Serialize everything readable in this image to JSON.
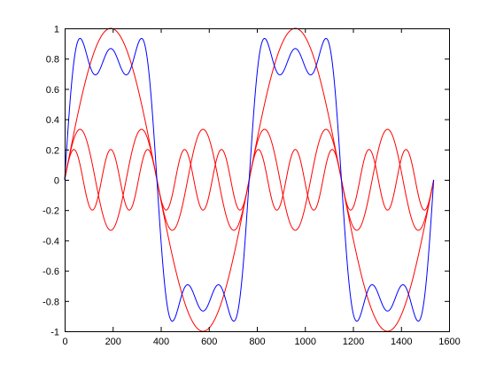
{
  "chart_data": {
    "type": "line",
    "title": "",
    "xlabel": "",
    "ylabel": "",
    "xlim": [
      0,
      1600
    ],
    "ylim": [
      -1,
      1
    ],
    "grid": false,
    "xticks": [
      0,
      200,
      400,
      600,
      800,
      1000,
      1200,
      1400,
      1600
    ],
    "xtick_labels": [
      "0",
      "200",
      "400",
      "600",
      "800",
      "1000",
      "1200",
      "1400",
      "1600"
    ],
    "yticks": [
      1,
      0.8,
      0.6,
      0.4,
      0.2,
      0,
      -0.2,
      -0.4,
      -0.6,
      -0.8,
      -1
    ],
    "ytick_labels": [
      "1",
      "0.8",
      "0.6",
      "0.4",
      "0.2",
      "0",
      "-0.2",
      "-0.4",
      "-0.6",
      "-0.8",
      "-1"
    ],
    "series": [
      {
        "color": "#ff0000",
        "function": "sin",
        "amplitude": 1.0,
        "harmonic": 1,
        "period": 768,
        "x_range": [
          0,
          1536
        ]
      },
      {
        "color": "#ff0000",
        "function": "sin",
        "amplitude": 0.3333,
        "harmonic": 3,
        "period": 768,
        "x_range": [
          0,
          1536
        ]
      },
      {
        "color": "#ff0000",
        "function": "sin",
        "amplitude": 0.2,
        "harmonic": 5,
        "period": 768,
        "x_range": [
          0,
          1536
        ]
      },
      {
        "color": "#0000ff",
        "function": "sum",
        "of": [
          0,
          1,
          2
        ],
        "x_range": [
          0,
          1536
        ]
      }
    ]
  }
}
